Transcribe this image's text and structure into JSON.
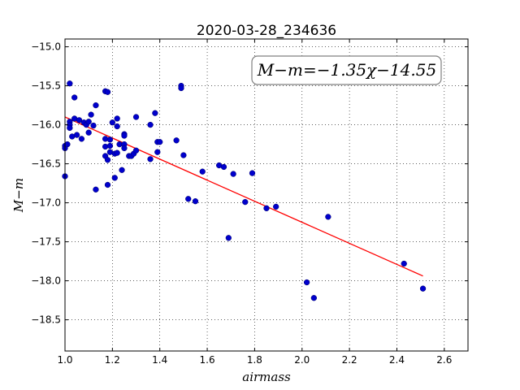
{
  "chart_data": {
    "type": "scatter",
    "title": "2020-03-28_234636",
    "xlabel": "airmass",
    "ylabel": "M−m",
    "xlim": [
      1.0,
      2.7
    ],
    "ylim": [
      -18.9,
      -14.9
    ],
    "y_inverted": true,
    "grid": true,
    "x_ticks": [
      "1.0",
      "1.2",
      "1.4",
      "1.6",
      "1.8",
      "2.0",
      "2.2",
      "2.4",
      "2.6"
    ],
    "y_ticks": [
      "−15.0",
      "−15.5",
      "−16.0",
      "−16.5",
      "−17.0",
      "−17.5",
      "−18.0",
      "−18.5"
    ],
    "annotation": "M−m=−1.35χ−14.55",
    "fit": {
      "slope": -1.35,
      "intercept": -14.55,
      "x_range": [
        1.0,
        2.51
      ],
      "color": "#ff0000"
    },
    "point_color": "#0000cc",
    "points": [
      [
        1.0,
        -16.27
      ],
      [
        1.0,
        -16.3
      ],
      [
        1.01,
        -16.25
      ],
      [
        1.0,
        -16.66
      ],
      [
        1.02,
        -15.96
      ],
      [
        1.02,
        -16.0
      ],
      [
        1.02,
        -16.04
      ],
      [
        1.02,
        -15.47
      ],
      [
        1.03,
        -16.15
      ],
      [
        1.04,
        -15.65
      ],
      [
        1.04,
        -15.92
      ],
      [
        1.05,
        -16.13
      ],
      [
        1.06,
        -15.94
      ],
      [
        1.07,
        -16.18
      ],
      [
        1.08,
        -15.97
      ],
      [
        1.09,
        -16.0
      ],
      [
        1.1,
        -15.96
      ],
      [
        1.1,
        -16.1
      ],
      [
        1.11,
        -15.87
      ],
      [
        1.12,
        -16.01
      ],
      [
        1.13,
        -15.75
      ],
      [
        1.13,
        -16.83
      ],
      [
        1.17,
        -15.57
      ],
      [
        1.18,
        -15.58
      ],
      [
        1.17,
        -16.18
      ],
      [
        1.17,
        -16.28
      ],
      [
        1.17,
        -16.4
      ],
      [
        1.18,
        -16.45
      ],
      [
        1.18,
        -16.77
      ],
      [
        1.19,
        -16.19
      ],
      [
        1.19,
        -16.27
      ],
      [
        1.19,
        -16.35
      ],
      [
        1.2,
        -15.97
      ],
      [
        1.21,
        -16.37
      ],
      [
        1.21,
        -16.68
      ],
      [
        1.22,
        -15.92
      ],
      [
        1.22,
        -16.02
      ],
      [
        1.22,
        -16.36
      ],
      [
        1.23,
        -16.25
      ],
      [
        1.24,
        -16.58
      ],
      [
        1.25,
        -16.12
      ],
      [
        1.25,
        -16.14
      ],
      [
        1.25,
        -16.25
      ],
      [
        1.25,
        -16.3
      ],
      [
        1.27,
        -16.4
      ],
      [
        1.28,
        -16.4
      ],
      [
        1.29,
        -16.37
      ],
      [
        1.3,
        -15.9
      ],
      [
        1.3,
        -16.33
      ],
      [
        1.36,
        -16.0
      ],
      [
        1.36,
        -16.44
      ],
      [
        1.38,
        -15.85
      ],
      [
        1.39,
        -16.22
      ],
      [
        1.4,
        -16.22
      ],
      [
        1.39,
        -16.35
      ],
      [
        1.47,
        -16.2
      ],
      [
        1.49,
        -15.5
      ],
      [
        1.49,
        -15.53
      ],
      [
        1.5,
        -16.39
      ],
      [
        1.52,
        -16.95
      ],
      [
        1.55,
        -16.98
      ],
      [
        1.58,
        -16.6
      ],
      [
        1.65,
        -16.52
      ],
      [
        1.67,
        -16.54
      ],
      [
        1.69,
        -17.45
      ],
      [
        1.71,
        -16.63
      ],
      [
        1.76,
        -16.99
      ],
      [
        1.79,
        -16.62
      ],
      [
        1.85,
        -17.07
      ],
      [
        1.89,
        -17.05
      ],
      [
        2.02,
        -18.02
      ],
      [
        2.05,
        -18.22
      ],
      [
        2.11,
        -17.18
      ],
      [
        2.43,
        -17.78
      ],
      [
        2.51,
        -18.1
      ]
    ]
  }
}
